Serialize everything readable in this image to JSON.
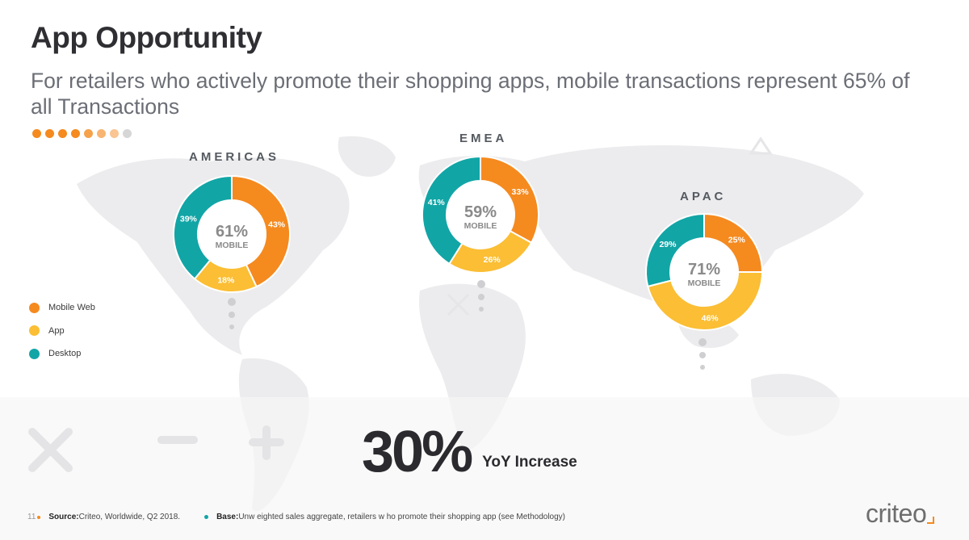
{
  "title": "App Opportunity",
  "subtitle": "For retailers who actively promote their shopping apps, mobile transactions represent 65% of all Transactions",
  "colors": {
    "mobile_web": "#f58a1f",
    "app": "#fbbe34",
    "desktop": "#12a5a6",
    "center_text": "#8a8a8a",
    "accent": "#f58a1f"
  },
  "legend": [
    {
      "label": "Mobile Web",
      "color": "#f58a1f"
    },
    {
      "label": "App",
      "color": "#fbbe34"
    },
    {
      "label": "Desktop",
      "color": "#12a5a6"
    }
  ],
  "chart_data": [
    {
      "type": "pie",
      "title": "AMERICAS",
      "center_value": "61%",
      "center_label": "MOBILE",
      "categories": [
        "Mobile Web",
        "App",
        "Desktop"
      ],
      "values": [
        43,
        18,
        39
      ],
      "value_labels": [
        "43%",
        "18%",
        "39%"
      ]
    },
    {
      "type": "pie",
      "title": "EMEA",
      "center_value": "59%",
      "center_label": "MOBILE",
      "categories": [
        "Mobile Web",
        "App",
        "Desktop"
      ],
      "values": [
        33,
        26,
        41
      ],
      "value_labels": [
        "33%",
        "26%",
        "41%"
      ]
    },
    {
      "type": "pie",
      "title": "APAC",
      "center_value": "71%",
      "center_label": "MOBILE",
      "categories": [
        "Mobile Web",
        "App",
        "Desktop"
      ],
      "values": [
        25,
        46,
        29
      ],
      "value_labels": [
        "25%",
        "46%",
        "29%"
      ]
    }
  ],
  "stat": {
    "value": "30%",
    "label": "YoY Increase"
  },
  "footer": {
    "page_number": "11",
    "source_label": "Source:",
    "source_text": " Criteo, Worldwide, Q2 2018.",
    "base_label": "Base:",
    "base_text": " Unw eighted sales aggregate, retailers w ho promote their shopping app (see Methodology)"
  },
  "logo": "criteo"
}
